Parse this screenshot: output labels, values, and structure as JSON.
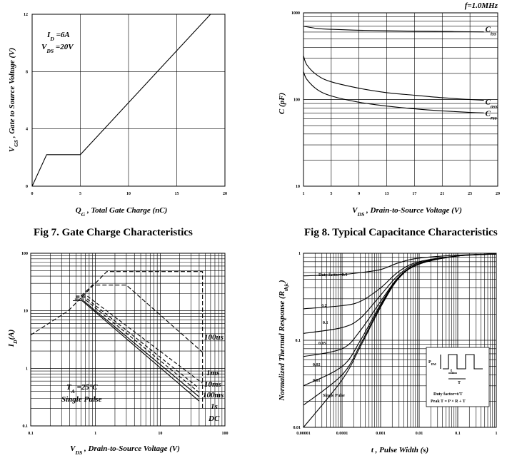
{
  "chart_data": [
    {
      "id": "fig7",
      "type": "line",
      "caption": "Fig 7. Gate Charge Characteristics",
      "xlabel_main": "Q",
      "xlabel_sub": "G",
      "xlabel_rest": " , Total Gate Charge (nC)",
      "ylabel_main": "V",
      "ylabel_sub": "GS",
      "ylabel_rest": " , Gate to Source Voltage (V)",
      "xlim": [
        0,
        20
      ],
      "ylim": [
        0,
        12
      ],
      "xticks": [
        "0",
        "5",
        "10",
        "15",
        "20"
      ],
      "yticks": [
        "0",
        "4",
        "8",
        "12"
      ],
      "annotation_1_main": "I",
      "annotation_1_sub": "D",
      "annotation_1_rest": " =6A",
      "annotation_2_main": "V",
      "annotation_2_sub": "DS",
      "annotation_2_rest": " =20V",
      "series": [
        {
          "x": [
            0,
            1.5,
            5,
            18.5
          ],
          "y": [
            0,
            2.2,
            2.2,
            12
          ]
        }
      ]
    },
    {
      "id": "fig8",
      "type": "line",
      "caption": "Fig 8. Typical Capacitance Characteristics",
      "xlabel_main": "V",
      "xlabel_sub": "DS",
      "xlabel_rest": " , Drain-to-Source Voltage (V)",
      "ylabel": "C (pF)",
      "xlim": [
        1,
        29
      ],
      "ylim": [
        10,
        1000
      ],
      "yscale": "log",
      "xticks": [
        "1",
        "5",
        "9",
        "13",
        "17",
        "21",
        "25",
        "29"
      ],
      "yticks": [
        "10",
        "100",
        "1000"
      ],
      "annotation_freq": "f=1.0MHz",
      "series": [
        {
          "name_main": "C",
          "name_sub": "iss",
          "x": [
            1,
            3,
            5,
            9,
            13,
            17,
            21,
            25,
            27
          ],
          "y": [
            700,
            660,
            645,
            630,
            622,
            615,
            610,
            605,
            603
          ]
        },
        {
          "name_main": "C",
          "name_sub": "oss",
          "x": [
            1,
            1.5,
            3,
            5,
            9,
            13,
            17,
            21,
            25,
            27
          ],
          "y": [
            320,
            250,
            190,
            160,
            135,
            120,
            112,
            105,
            100,
            98
          ]
        },
        {
          "name_main": "C",
          "name_sub": "rss",
          "x": [
            1,
            1.5,
            3,
            5,
            9,
            13,
            17,
            21,
            25,
            27
          ],
          "y": [
            210,
            170,
            130,
            110,
            93,
            84,
            78,
            74,
            71,
            70
          ]
        }
      ]
    },
    {
      "id": "fig9",
      "type": "line",
      "xlabel_main": "V",
      "xlabel_sub": "DS",
      "xlabel_rest": " , Drain-to-Source Voltage (V)",
      "ylabel_main": "I",
      "ylabel_sub": "D",
      "ylabel_rest": "(A)",
      "xlim": [
        0.1,
        100
      ],
      "ylim": [
        0.1,
        100
      ],
      "xscale": "log",
      "yscale": "log",
      "xticks": [
        "0.1",
        "1",
        "10",
        "100"
      ],
      "yticks": [
        "0.1",
        "1",
        "10",
        "100"
      ],
      "annotation_1_main": "T",
      "annotation_1_sub": "A",
      "annotation_1_rest": " =25°C",
      "annotation_2": "Single Pulse",
      "pulse_labels": [
        "100us",
        "1ms",
        "10ms",
        "100ms",
        "1s",
        "DC"
      ],
      "limit_lines": [
        {
          "x": [
            0.1,
            0.38,
            1.5,
            45,
            45
          ],
          "y": [
            3.8,
            10,
            48,
            48,
            0.2
          ]
        },
        {
          "x": [
            0.6,
            0.9,
            3,
            45
          ],
          "y": [
            18,
            28,
            28,
            1.9
          ]
        }
      ],
      "soa_lines": [
        {
          "x": [
            0.5,
            0.75,
            45
          ],
          "y": [
            18,
            18,
            0.55
          ]
        },
        {
          "x": [
            0.5,
            0.7,
            40
          ],
          "y": [
            17,
            17,
            0.45
          ]
        },
        {
          "x": [
            0.48,
            0.68,
            40
          ],
          "y": [
            16,
            16,
            0.38
          ]
        },
        {
          "x": [
            0.45,
            0.65,
            40
          ],
          "y": [
            15,
            15,
            0.32
          ]
        },
        {
          "x": [
            0.45,
            0.62,
            40
          ],
          "y": [
            15,
            15,
            0.27
          ]
        }
      ]
    },
    {
      "id": "fig10",
      "type": "line",
      "xlabel": "t , Pulse Width (s)",
      "ylabel_main": "Normalized Thermal Response (R",
      "ylabel_sub": "thjc",
      "ylabel_rest": ")",
      "xlim": [
        1e-05,
        1
      ],
      "ylim": [
        0.01,
        1
      ],
      "xscale": "log",
      "yscale": "log",
      "xticks": [
        "0.00001",
        "0.0001",
        "0.001",
        "0.01",
        "0.1",
        "1"
      ],
      "yticks": [
        "0.01",
        "0.1",
        "1"
      ],
      "duty_labels": [
        "Duty factor=0.5",
        "0.2",
        "0.1",
        "0.05",
        "0.02",
        "0.01",
        "Single Pulse"
      ],
      "inset_pdm_main": "P",
      "inset_pdm_sub": "DM",
      "inset_t1_main": "t",
      "inset_t1_sub": "1",
      "inset_T": "T",
      "inset_duty": "Duty factor=t/T",
      "inset_peak": "Peak T = P × R + T",
      "series": [
        {
          "x": [
            1e-05,
            0.0001,
            0.0003,
            0.001,
            0.003,
            0.01,
            0.1,
            1
          ],
          "y": [
            0.55,
            0.57,
            0.6,
            0.65,
            0.78,
            0.88,
            0.95,
            0.98
          ]
        },
        {
          "x": [
            1e-05,
            0.0001,
            0.0003,
            0.001,
            0.003,
            0.01,
            0.1,
            1
          ],
          "y": [
            0.23,
            0.25,
            0.28,
            0.4,
            0.62,
            0.8,
            0.93,
            0.98
          ]
        },
        {
          "x": [
            1e-05,
            0.0001,
            0.0003,
            0.001,
            0.003,
            0.01,
            0.1,
            1
          ],
          "y": [
            0.12,
            0.14,
            0.18,
            0.33,
            0.57,
            0.78,
            0.93,
            0.98
          ]
        },
        {
          "x": [
            1e-05,
            0.0001,
            0.0003,
            0.001,
            0.003,
            0.01,
            0.1,
            1
          ],
          "y": [
            0.065,
            0.08,
            0.13,
            0.28,
            0.54,
            0.76,
            0.93,
            0.98
          ]
        },
        {
          "x": [
            1e-05,
            0.0001,
            0.0003,
            0.001,
            0.003,
            0.01,
            0.1,
            1
          ],
          "y": [
            0.03,
            0.05,
            0.1,
            0.26,
            0.53,
            0.75,
            0.93,
            0.98
          ]
        },
        {
          "x": [
            1e-05,
            0.0001,
            0.0003,
            0.001,
            0.003,
            0.01,
            0.1,
            1
          ],
          "y": [
            0.018,
            0.04,
            0.09,
            0.25,
            0.52,
            0.75,
            0.93,
            0.98
          ]
        },
        {
          "x": [
            1e-05,
            0.0001,
            0.0003,
            0.001,
            0.003,
            0.01,
            0.1,
            1
          ],
          "y": [
            0.01,
            0.035,
            0.085,
            0.24,
            0.52,
            0.75,
            0.93,
            0.98
          ]
        }
      ]
    }
  ]
}
